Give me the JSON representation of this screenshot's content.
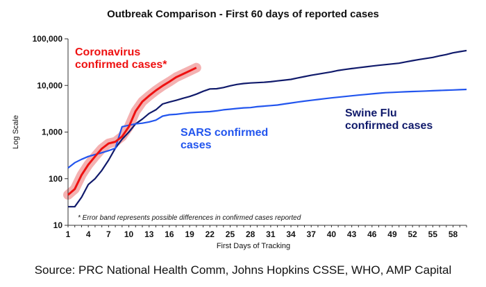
{
  "chart_data": {
    "type": "line",
    "title": "Outbreak Comparison - First 60 days of reported cases",
    "xlabel": "First Days of Tracking",
    "ylabel": "Log Scale",
    "yscale": "log",
    "ylim": [
      10,
      100000
    ],
    "xlim": [
      1,
      60
    ],
    "x_ticks": [
      1,
      4,
      7,
      10,
      13,
      16,
      19,
      22,
      25,
      28,
      31,
      34,
      37,
      40,
      43,
      46,
      49,
      52,
      55,
      58
    ],
    "y_ticks": [
      10,
      100,
      1000,
      10000,
      100000
    ],
    "y_tick_labels": [
      "10",
      "100",
      "1,000",
      "10,000",
      "100,000"
    ],
    "grid": false,
    "series": [
      {
        "name": "Coronavirus confirmed cases*",
        "color": "#ee1111",
        "error_band": true,
        "x": [
          1,
          2,
          3,
          4,
          5,
          6,
          7,
          8,
          9,
          10,
          11,
          12,
          13,
          14,
          15,
          16,
          17,
          18,
          19,
          20
        ],
        "values": [
          45,
          60,
          120,
          200,
          300,
          440,
          570,
          620,
          800,
          1300,
          2800,
          4500,
          6000,
          7800,
          9800,
          12000,
          15000,
          17500,
          20500,
          24000
        ]
      },
      {
        "name": "SARS confirmed cases",
        "color": "#2255ee",
        "x": [
          1,
          2,
          3,
          4,
          5,
          6,
          7,
          8,
          9,
          10,
          11,
          12,
          13,
          14,
          15,
          16,
          17,
          18,
          19,
          20,
          21,
          22,
          23,
          24,
          25,
          26,
          27,
          28,
          29,
          30,
          31,
          32,
          33,
          34,
          35,
          36,
          37,
          38,
          39,
          40,
          41,
          42,
          43,
          44,
          45,
          46,
          47,
          48,
          49,
          50,
          51,
          52,
          53,
          54,
          55,
          56,
          57,
          58,
          59,
          60
        ],
        "values": [
          170,
          220,
          260,
          300,
          330,
          360,
          400,
          450,
          1300,
          1400,
          1500,
          1550,
          1650,
          1800,
          2200,
          2350,
          2400,
          2500,
          2600,
          2650,
          2700,
          2750,
          2850,
          3000,
          3100,
          3200,
          3300,
          3350,
          3500,
          3600,
          3700,
          3800,
          4000,
          4200,
          4400,
          4600,
          4800,
          5000,
          5200,
          5400,
          5600,
          5800,
          6000,
          6200,
          6400,
          6600,
          6800,
          7000,
          7100,
          7200,
          7300,
          7400,
          7500,
          7600,
          7700,
          7800,
          7900,
          8000,
          8100,
          8200
        ]
      },
      {
        "name": "Swine Flu confirmed cases",
        "color": "#101a6b",
        "x": [
          1,
          2,
          3,
          4,
          5,
          6,
          7,
          8,
          9,
          10,
          11,
          12,
          13,
          14,
          15,
          16,
          17,
          18,
          19,
          20,
          21,
          22,
          23,
          24,
          25,
          26,
          27,
          28,
          29,
          30,
          31,
          32,
          33,
          34,
          35,
          36,
          37,
          38,
          39,
          40,
          41,
          42,
          43,
          44,
          45,
          46,
          47,
          48,
          49,
          50,
          51,
          52,
          53,
          54,
          55,
          56,
          57,
          58,
          59,
          60
        ],
        "values": [
          25,
          25,
          40,
          75,
          100,
          150,
          250,
          450,
          700,
          1000,
          1500,
          1900,
          2500,
          3000,
          4000,
          4400,
          4800,
          5300,
          5800,
          6500,
          7500,
          8400,
          8500,
          9000,
          9800,
          10500,
          11000,
          11300,
          11500,
          11700,
          12000,
          12500,
          13000,
          13500,
          14500,
          15500,
          16500,
          17500,
          18500,
          19500,
          21000,
          22000,
          23000,
          24000,
          25000,
          26000,
          27000,
          28000,
          29000,
          30000,
          32000,
          34000,
          36000,
          38000,
          40000,
          43000,
          46000,
          50000,
          53000,
          56000
        ]
      }
    ],
    "annotations": [
      {
        "text_lines": [
          "Coronavirus",
          "confirmed cases*"
        ],
        "color": "#ee1111"
      },
      {
        "text_lines": [
          "SARS confirmed",
          "cases"
        ],
        "color": "#2255ee"
      },
      {
        "text_lines": [
          "Swine Flu",
          "confirmed cases"
        ],
        "color": "#101a6b"
      }
    ],
    "footnote": "* Error band represents possible differences in confirmed cases reported"
  },
  "source": "Source: PRC National Health Comm, Johns Hopkins CSSE, WHO, AMP Capital"
}
